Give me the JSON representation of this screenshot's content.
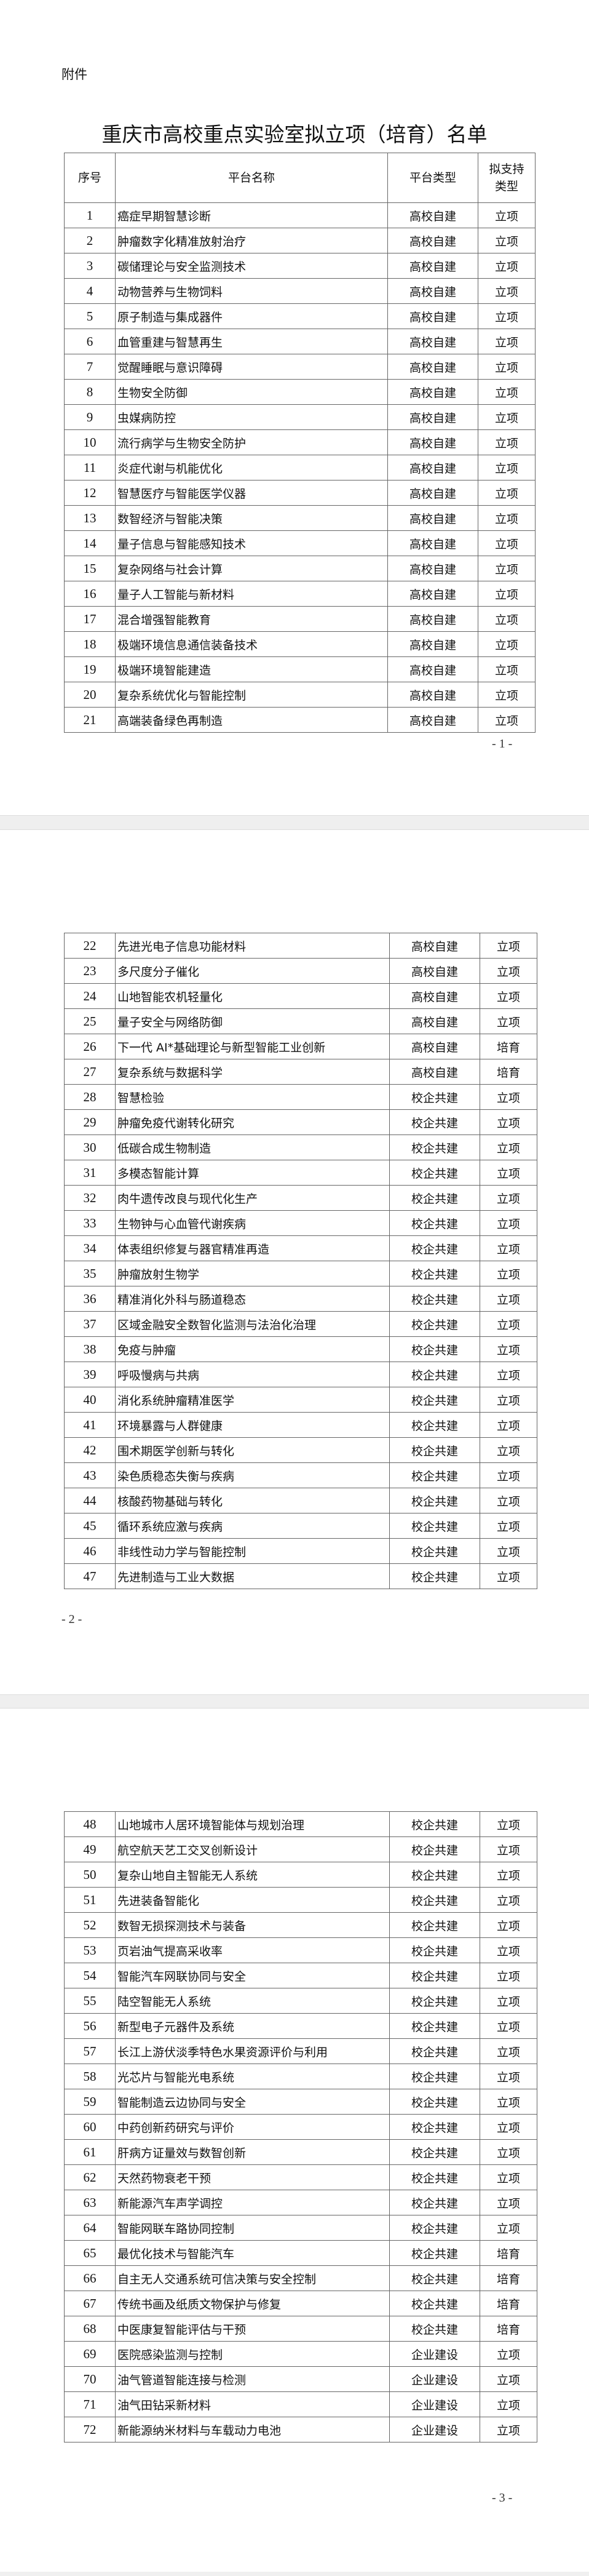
{
  "attachment_label": "附件",
  "title": "重庆市高校重点实验室拟立项（培育）名单",
  "headers": [
    "序号",
    "平台名称",
    "平台类型",
    "拟支持类型"
  ],
  "page_numbers": [
    "- 1 -",
    "- 2 -",
    "- 3 -"
  ],
  "rows": [
    [
      "1",
      "癌症早期智慧诊断",
      "高校自建",
      "立项"
    ],
    [
      "2",
      "肿瘤数字化精准放射治疗",
      "高校自建",
      "立项"
    ],
    [
      "3",
      "碳储理论与安全监测技术",
      "高校自建",
      "立项"
    ],
    [
      "4",
      "动物营养与生物饲料",
      "高校自建",
      "立项"
    ],
    [
      "5",
      "原子制造与集成器件",
      "高校自建",
      "立项"
    ],
    [
      "6",
      "血管重建与智慧再生",
      "高校自建",
      "立项"
    ],
    [
      "7",
      "觉醒睡眠与意识障碍",
      "高校自建",
      "立项"
    ],
    [
      "8",
      "生物安全防御",
      "高校自建",
      "立项"
    ],
    [
      "9",
      "虫媒病防控",
      "高校自建",
      "立项"
    ],
    [
      "10",
      "流行病学与生物安全防护",
      "高校自建",
      "立项"
    ],
    [
      "11",
      "炎症代谢与机能优化",
      "高校自建",
      "立项"
    ],
    [
      "12",
      "智慧医疗与智能医学仪器",
      "高校自建",
      "立项"
    ],
    [
      "13",
      "数智经济与智能决策",
      "高校自建",
      "立项"
    ],
    [
      "14",
      "量子信息与智能感知技术",
      "高校自建",
      "立项"
    ],
    [
      "15",
      "复杂网络与社会计算",
      "高校自建",
      "立项"
    ],
    [
      "16",
      "量子人工智能与新材料",
      "高校自建",
      "立项"
    ],
    [
      "17",
      "混合增强智能教育",
      "高校自建",
      "立项"
    ],
    [
      "18",
      "极端环境信息通信装备技术",
      "高校自建",
      "立项"
    ],
    [
      "19",
      "极端环境智能建造",
      "高校自建",
      "立项"
    ],
    [
      "20",
      "复杂系统优化与智能控制",
      "高校自建",
      "立项"
    ],
    [
      "21",
      "高端装备绿色再制造",
      "高校自建",
      "立项"
    ],
    [
      "22",
      "先进光电子信息功能材料",
      "高校自建",
      "立项"
    ],
    [
      "23",
      "多尺度分子催化",
      "高校自建",
      "立项"
    ],
    [
      "24",
      "山地智能农机轻量化",
      "高校自建",
      "立项"
    ],
    [
      "25",
      "量子安全与网络防御",
      "高校自建",
      "立项"
    ],
    [
      "26",
      "下一代 AI*基础理论与新型智能工业创新",
      "高校自建",
      "培育"
    ],
    [
      "27",
      "复杂系统与数据科学",
      "高校自建",
      "培育"
    ],
    [
      "28",
      "智慧检验",
      "校企共建",
      "立项"
    ],
    [
      "29",
      "肿瘤免疫代谢转化研究",
      "校企共建",
      "立项"
    ],
    [
      "30",
      "低碳合成生物制造",
      "校企共建",
      "立项"
    ],
    [
      "31",
      "多模态智能计算",
      "校企共建",
      "立项"
    ],
    [
      "32",
      "肉牛遗传改良与现代化生产",
      "校企共建",
      "立项"
    ],
    [
      "33",
      "生物钟与心血管代谢疾病",
      "校企共建",
      "立项"
    ],
    [
      "34",
      "体表组织修复与器官精准再造",
      "校企共建",
      "立项"
    ],
    [
      "35",
      "肿瘤放射生物学",
      "校企共建",
      "立项"
    ],
    [
      "36",
      "精准消化外科与肠道稳态",
      "校企共建",
      "立项"
    ],
    [
      "37",
      "区域金融安全数智化监测与法治化治理",
      "校企共建",
      "立项"
    ],
    [
      "38",
      "免疫与肿瘤",
      "校企共建",
      "立项"
    ],
    [
      "39",
      "呼吸慢病与共病",
      "校企共建",
      "立项"
    ],
    [
      "40",
      "消化系统肿瘤精准医学",
      "校企共建",
      "立项"
    ],
    [
      "41",
      "环境暴露与人群健康",
      "校企共建",
      "立项"
    ],
    [
      "42",
      "围术期医学创新与转化",
      "校企共建",
      "立项"
    ],
    [
      "43",
      "染色质稳态失衡与疾病",
      "校企共建",
      "立项"
    ],
    [
      "44",
      "核酸药物基础与转化",
      "校企共建",
      "立项"
    ],
    [
      "45",
      "循环系统应激与疾病",
      "校企共建",
      "立项"
    ],
    [
      "46",
      "非线性动力学与智能控制",
      "校企共建",
      "立项"
    ],
    [
      "47",
      "先进制造与工业大数据",
      "校企共建",
      "立项"
    ],
    [
      "48",
      "山地城市人居环境智能体与规划治理",
      "校企共建",
      "立项"
    ],
    [
      "49",
      "航空航天艺工交叉创新设计",
      "校企共建",
      "立项"
    ],
    [
      "50",
      "复杂山地自主智能无人系统",
      "校企共建",
      "立项"
    ],
    [
      "51",
      "先进装备智能化",
      "校企共建",
      "立项"
    ],
    [
      "52",
      "数智无损探测技术与装备",
      "校企共建",
      "立项"
    ],
    [
      "53",
      "页岩油气提高采收率",
      "校企共建",
      "立项"
    ],
    [
      "54",
      "智能汽车网联协同与安全",
      "校企共建",
      "立项"
    ],
    [
      "55",
      "陆空智能无人系统",
      "校企共建",
      "立项"
    ],
    [
      "56",
      "新型电子元器件及系统",
      "校企共建",
      "立项"
    ],
    [
      "57",
      "长江上游伏淡季特色水果资源评价与利用",
      "校企共建",
      "立项"
    ],
    [
      "58",
      "光芯片与智能光电系统",
      "校企共建",
      "立项"
    ],
    [
      "59",
      "智能制造云边协同与安全",
      "校企共建",
      "立项"
    ],
    [
      "60",
      "中药创新药研究与评价",
      "校企共建",
      "立项"
    ],
    [
      "61",
      "肝病方证量效与数智创新",
      "校企共建",
      "立项"
    ],
    [
      "62",
      "天然药物衰老干预",
      "校企共建",
      "立项"
    ],
    [
      "63",
      "新能源汽车声学调控",
      "校企共建",
      "立项"
    ],
    [
      "64",
      "智能网联车路协同控制",
      "校企共建",
      "立项"
    ],
    [
      "65",
      "最优化技术与智能汽车",
      "校企共建",
      "培育"
    ],
    [
      "66",
      "自主无人交通系统可信决策与安全控制",
      "校企共建",
      "培育"
    ],
    [
      "67",
      "传统书画及纸质文物保护与修复",
      "校企共建",
      "培育"
    ],
    [
      "68",
      "中医康复智能评估与干预",
      "校企共建",
      "培育"
    ],
    [
      "69",
      "医院感染监测与控制",
      "企业建设",
      "立项"
    ],
    [
      "70",
      "油气管道智能连接与检测",
      "企业建设",
      "立项"
    ],
    [
      "71",
      "油气田钻采新材料",
      "企业建设",
      "立项"
    ],
    [
      "72",
      "新能源纳米材料与车载动力电池",
      "企业建设",
      "立项"
    ]
  ]
}
